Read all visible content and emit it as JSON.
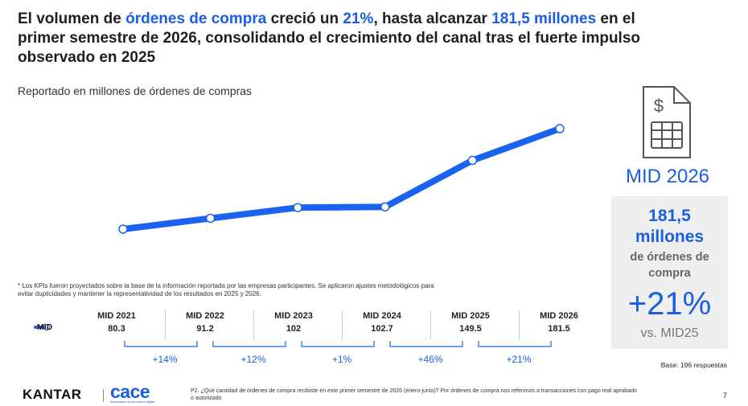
{
  "headline": {
    "p1": "El volumen de ",
    "h1": "órdenes de compra",
    "p2": " creció un ",
    "h2": "21%",
    "p3": ", hasta alcanzar ",
    "h3": "181,5 millones",
    "p4": " en el primer semestre de 2026, consolidando el crecimiento del canal tras el fuerte impulso observado en 2025"
  },
  "subtitle": "Reportado en millones de órdenes de compras",
  "footnote": "* Los KPIs fueron proyectados sobre la base de la información reportada por las empresas participantes. Se aplicaron ajustes metodológicos para evitar duplicidades y mantener la representatividad de los resultados en 2025 y 2026.",
  "chart_data": {
    "type": "line",
    "categories": [
      "MID 2021",
      "MID 2022",
      "MID 2023",
      "MID 2024",
      "MID 2025",
      "MID 2026"
    ],
    "series": [
      {
        "name": "MID",
        "values": [
          80.3,
          91.2,
          102,
          102.7,
          149.5,
          181.5
        ],
        "labels": [
          "80.3",
          "91.2",
          "102",
          "102.7",
          "149.5",
          "181.5"
        ]
      }
    ],
    "growth": [
      "+14%",
      "+12%",
      "+1%",
      "+46%",
      "+21%"
    ],
    "ylim": [
      60,
      190
    ],
    "grid": false,
    "legend": "left of table"
  },
  "colors": {
    "accent": "#1a63f0",
    "text_blue": "#1a5fe0"
  },
  "icon": "invoice-dollar-icon",
  "panel": {
    "title": "MID 2026",
    "big_line1": "181,5",
    "big_line2": "millones",
    "sub_line1": "de órdenes de",
    "sub_line2": "compra",
    "pct": "+21%",
    "vs": "vs. MID25"
  },
  "base": "Base: 196 respuestas",
  "footer": {
    "kantar": "KANTAR",
    "cace": "cace",
    "cace_sub": "Impulsando la economía digital",
    "question": "P2. ¿Qué cantidad de órdenes de compra recibiste en este primer semestre de 2026 (enero-junio)?  Por órdenes de compra nos referimos a transacciones con pago real aprobado o autorizado",
    "page": "7"
  }
}
